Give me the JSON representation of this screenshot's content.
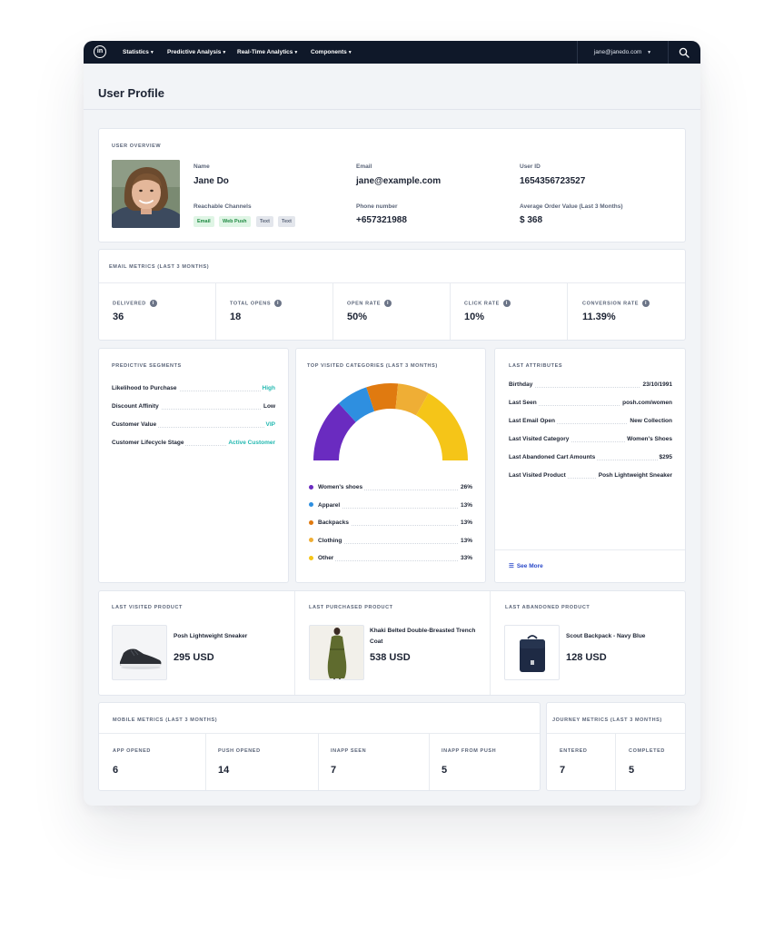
{
  "nav": {
    "items": [
      "Statistics",
      "Predictive Analysis",
      "Real-Time Analytics",
      "Components"
    ],
    "user_email": "jane@janedo.com"
  },
  "page_title": "User Profile",
  "overview": {
    "section": "USER OVERVIEW",
    "name_label": "Name",
    "name": "Jane Do",
    "email_label": "Email",
    "email": "jane@example.com",
    "userid_label": "User ID",
    "userid": "1654356723527",
    "channels_label": "Reachable Channels",
    "channels": [
      "Email",
      "Web Push",
      "Text",
      "Text"
    ],
    "phone_label": "Phone number",
    "phone": "+657321988",
    "aov_label": "Average Order Value (Last 3 Months)",
    "aov": "$ 368"
  },
  "email_metrics": {
    "section": "EMAIL METRICS (LAST 3 MONTHS)",
    "items": [
      {
        "label": "DELIVERED",
        "value": "36"
      },
      {
        "label": "TOTAL OPENS",
        "value": "18"
      },
      {
        "label": "OPEN RATE",
        "value": "50%"
      },
      {
        "label": "CLICK RATE",
        "value": "10%"
      },
      {
        "label": "CONVERSION RATE",
        "value": "11.39%"
      }
    ]
  },
  "segments": {
    "section": "PREDICTIVE SEGMENTS",
    "rows": [
      {
        "k": "Likelihood to Purchase",
        "v": "High"
      },
      {
        "k": "Discount Affinity",
        "v": "Low"
      },
      {
        "k": "Customer Value",
        "v": "VIP"
      },
      {
        "k": "Customer Lifecycle Stage",
        "v": "Active Customer"
      }
    ]
  },
  "categories": {
    "section": "TOP VISITED CATEGORIES (LAST 3 MONTHS)",
    "items": [
      {
        "name": "Women's shoes",
        "pct": "26%",
        "value": 26,
        "color": "#6a2bc0"
      },
      {
        "name": "Apparel",
        "pct": "13%",
        "value": 13,
        "color": "#2e8fe0"
      },
      {
        "name": "Backpacks",
        "pct": "13%",
        "value": 13,
        "color": "#e07a10"
      },
      {
        "name": "Clothing",
        "pct": "13%",
        "value": 13,
        "color": "#efae35"
      },
      {
        "name": "Other",
        "pct": "33%",
        "value": 33,
        "color": "#f5c518"
      }
    ]
  },
  "attributes": {
    "section": "LAST ATTRIBUTES",
    "rows": [
      {
        "k": "Birthday",
        "v": "23/10/1991"
      },
      {
        "k": "Last Seen",
        "v": "posh.com/women"
      },
      {
        "k": "Last Email Open",
        "v": "New Collection"
      },
      {
        "k": "Last Visited Category",
        "v": "Women's Shoes"
      },
      {
        "k": "Last Abandoned Cart Amounts",
        "v": "$295"
      },
      {
        "k": "Last Visited Product",
        "v": "Posh Lightweight Sneaker"
      }
    ],
    "see_more": "See More"
  },
  "products": [
    {
      "section": "LAST VISITED PRODUCT",
      "name": "Posh Lightweight Sneaker",
      "price": "295 USD"
    },
    {
      "section": "LAST PURCHASED PRODUCT",
      "name": "Khaki Belted Double-Breasted Trench Coat",
      "price": "538 USD"
    },
    {
      "section": "LAST ABANDONED PRODUCT",
      "name": "Scout Backpack - Navy Blue",
      "price": "128 USD"
    }
  ],
  "mobile_metrics": {
    "section": "MOBILE METRICS (LAST 3 MONTHS)",
    "items": [
      {
        "label": "APP OPENED",
        "value": "6"
      },
      {
        "label": "PUSH OPENED",
        "value": "14"
      },
      {
        "label": "INAPP SEEN",
        "value": "7"
      },
      {
        "label": "INAPP FROM PUSH",
        "value": "5"
      }
    ]
  },
  "journey_metrics": {
    "section": "JOURNEY METRICS (LAST 3 MONTHS)",
    "items": [
      {
        "label": "ENTERED",
        "value": "7"
      },
      {
        "label": "COMPLETED",
        "value": "5"
      }
    ]
  }
}
